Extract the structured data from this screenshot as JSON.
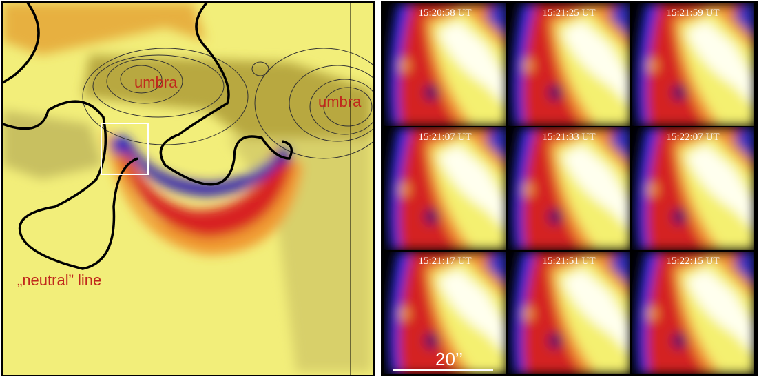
{
  "left_panel": {
    "labels": [
      "umbra",
      "umbra",
      "„neutral” line"
    ]
  },
  "right_panel": {
    "frames": [
      [
        "15:20:58 UT",
        "15:21:25 UT",
        "15:21:59 UT"
      ],
      [
        "15:21:07 UT",
        "15:21:33 UT",
        "15:22:07 UT"
      ],
      [
        "15:21:17 UT",
        "15:21:51 UT",
        "15:22:15 UT"
      ]
    ],
    "scale_bar": "20’’"
  }
}
